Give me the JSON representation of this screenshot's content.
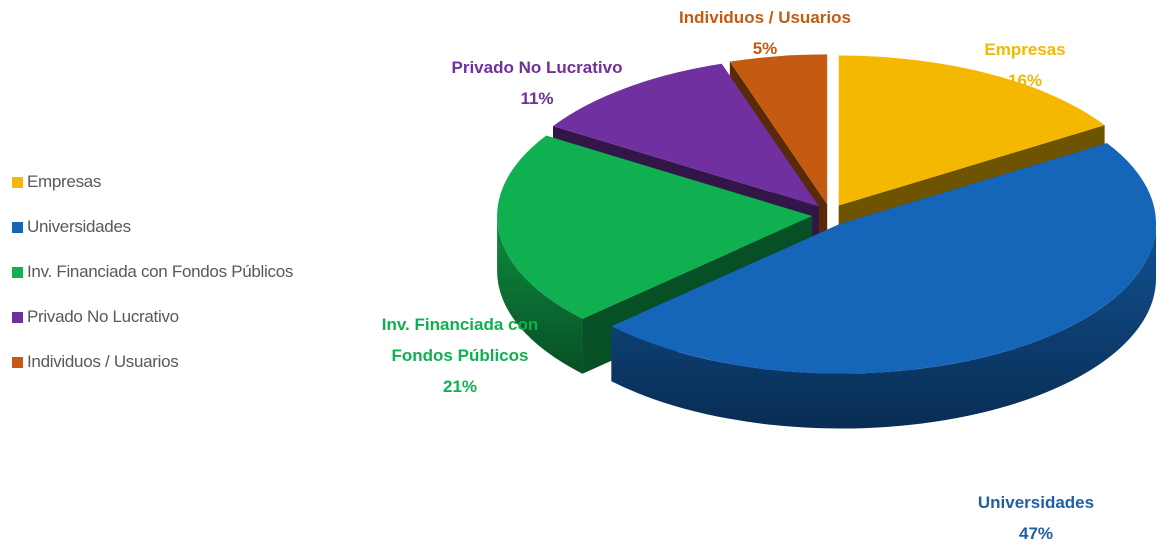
{
  "chart_data": {
    "type": "pie3d",
    "categories": [
      "Empresas",
      "Universidades",
      "Inv. Financiada con Fondos Públicos",
      "Privado No Lucrativo",
      "Individuos / Usuarios"
    ],
    "values": [
      16,
      47,
      21,
      11,
      5
    ],
    "value_labels": [
      "16%",
      "47%",
      "21%",
      "11%",
      "5%"
    ],
    "colors": [
      "#f5b800",
      "#1565b8",
      "#10b050",
      "#7030a0",
      "#c55a11"
    ],
    "legend": "left"
  }
}
